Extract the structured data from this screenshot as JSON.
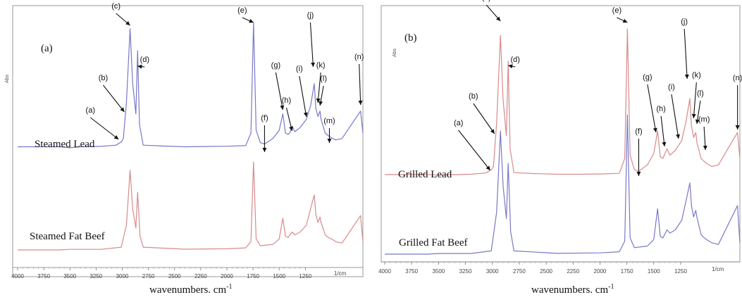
{
  "chart_data": [
    {
      "type": "line",
      "panel_label": "(a)",
      "ylabel": "Abs",
      "xlabel": "wavenumbers. cm",
      "xlabel_sup": "-1",
      "x_unit_tick": "1/cm",
      "xlim": [
        4000,
        700
      ],
      "x_ticks": [
        4000,
        3750,
        3500,
        3250,
        3000,
        2750,
        2500,
        2250,
        2000,
        1750,
        1500,
        1250
      ],
      "grid": false,
      "series": [
        {
          "name": "Steamed Lead",
          "color": "#7878c8",
          "points": [
            [
              4000,
              0.1
            ],
            [
              3600,
              0.1
            ],
            [
              3500,
              0.093
            ],
            [
              3400,
              0.1
            ],
            [
              3200,
              0.103
            ],
            [
              3060,
              0.112
            ],
            [
              3010,
              0.135
            ],
            [
              2990,
              0.16
            ],
            [
              2960,
              0.42
            ],
            [
              2925,
              0.96
            ],
            [
              2900,
              0.56
            ],
            [
              2870,
              0.34
            ],
            [
              2853,
              0.8
            ],
            [
              2835,
              0.26
            ],
            [
              2800,
              0.112
            ],
            [
              2600,
              0.105
            ],
            [
              2400,
              0.1
            ],
            [
              2200,
              0.102
            ],
            [
              2000,
              0.104
            ],
            [
              1820,
              0.108
            ],
            [
              1770,
              0.2
            ],
            [
              1745,
              1.0
            ],
            [
              1720,
              0.22
            ],
            [
              1680,
              0.13
            ],
            [
              1640,
              0.12
            ],
            [
              1560,
              0.16
            ],
            [
              1500,
              0.22
            ],
            [
              1465,
              0.34
            ],
            [
              1440,
              0.2
            ],
            [
              1415,
              0.19
            ],
            [
              1400,
              0.2
            ],
            [
              1377,
              0.25
            ],
            [
              1350,
              0.21
            ],
            [
              1300,
              0.24
            ],
            [
              1240,
              0.3
            ],
            [
              1200,
              0.4
            ],
            [
              1165,
              0.56
            ],
            [
              1150,
              0.38
            ],
            [
              1130,
              0.32
            ],
            [
              1110,
              0.36
            ],
            [
              1100,
              0.3
            ],
            [
              1060,
              0.2
            ],
            [
              1030,
              0.18
            ],
            [
              1000,
              0.165
            ],
            [
              960,
              0.15
            ],
            [
              900,
              0.16
            ],
            [
              722,
              0.36
            ],
            [
              700,
              0.2
            ]
          ]
        },
        {
          "name": "Steamed Fat Beef",
          "color": "#d88a8a",
          "points": [
            [
              4000,
              0.0
            ],
            [
              3600,
              0.0
            ],
            [
              3500,
              0.004
            ],
            [
              3200,
              0.004
            ],
            [
              3010,
              0.02
            ],
            [
              2960,
              0.18
            ],
            [
              2925,
              0.58
            ],
            [
              2900,
              0.3
            ],
            [
              2870,
              0.16
            ],
            [
              2853,
              0.42
            ],
            [
              2830,
              0.1
            ],
            [
              2800,
              0.02
            ],
            [
              2400,
              0.005
            ],
            [
              2000,
              0.008
            ],
            [
              1820,
              0.015
            ],
            [
              1770,
              0.06
            ],
            [
              1745,
              0.64
            ],
            [
              1720,
              0.08
            ],
            [
              1680,
              0.03
            ],
            [
              1560,
              0.04
            ],
            [
              1500,
              0.08
            ],
            [
              1465,
              0.23
            ],
            [
              1440,
              0.1
            ],
            [
              1415,
              0.09
            ],
            [
              1377,
              0.13
            ],
            [
              1350,
              0.11
            ],
            [
              1300,
              0.13
            ],
            [
              1240,
              0.18
            ],
            [
              1200,
              0.3
            ],
            [
              1165,
              0.4
            ],
            [
              1150,
              0.26
            ],
            [
              1130,
              0.2
            ],
            [
              1110,
              0.24
            ],
            [
              1100,
              0.2
            ],
            [
              1060,
              0.11
            ],
            [
              1030,
              0.09
            ],
            [
              1000,
              0.08
            ],
            [
              960,
              0.06
            ],
            [
              900,
              0.05
            ],
            [
              722,
              0.25
            ],
            [
              700,
              0.06
            ]
          ]
        }
      ],
      "peak_labels": [
        "(a)",
        "(b)",
        "(c)",
        "(d)",
        "(e)",
        "(f)",
        "(g)",
        "(h)",
        "(i)",
        "(j)",
        "(k)",
        "(l)",
        "(m)",
        "(n)"
      ]
    },
    {
      "type": "line",
      "panel_label": "(b)",
      "ylabel": "Abs",
      "xlabel": "wavenumbers. cm",
      "xlabel_sup": "-1",
      "x_unit_tick": "1/cm",
      "xlim": [
        4000,
        700
      ],
      "x_ticks": [
        4000,
        3750,
        3500,
        3250,
        3000,
        2750,
        2500,
        2250,
        2000,
        1750,
        1500,
        1250
      ],
      "grid": false,
      "series": [
        {
          "name": "Grilled Lead",
          "color": "#d88a8a",
          "points": [
            [
              4000,
              0.1
            ],
            [
              3600,
              0.1
            ],
            [
              3500,
              0.097
            ],
            [
              3200,
              0.102
            ],
            [
              3060,
              0.11
            ],
            [
              3010,
              0.13
            ],
            [
              2990,
              0.15
            ],
            [
              2960,
              0.42
            ],
            [
              2925,
              0.96
            ],
            [
              2900,
              0.56
            ],
            [
              2870,
              0.34
            ],
            [
              2853,
              0.8
            ],
            [
              2835,
              0.26
            ],
            [
              2800,
              0.112
            ],
            [
              2600,
              0.106
            ],
            [
              2400,
              0.102
            ],
            [
              2200,
              0.102
            ],
            [
              2000,
              0.104
            ],
            [
              1820,
              0.108
            ],
            [
              1770,
              0.2
            ],
            [
              1745,
              1.0
            ],
            [
              1720,
              0.22
            ],
            [
              1680,
              0.13
            ],
            [
              1640,
              0.12
            ],
            [
              1560,
              0.16
            ],
            [
              1500,
              0.23
            ],
            [
              1465,
              0.37
            ],
            [
              1440,
              0.21
            ],
            [
              1415,
              0.2
            ],
            [
              1377,
              0.26
            ],
            [
              1350,
              0.22
            ],
            [
              1300,
              0.25
            ],
            [
              1240,
              0.31
            ],
            [
              1200,
              0.43
            ],
            [
              1165,
              0.57
            ],
            [
              1150,
              0.4
            ],
            [
              1130,
              0.33
            ],
            [
              1110,
              0.36
            ],
            [
              1100,
              0.3
            ],
            [
              1060,
              0.2
            ],
            [
              1030,
              0.18
            ],
            [
              1000,
              0.165
            ],
            [
              960,
              0.15
            ],
            [
              900,
              0.16
            ],
            [
              722,
              0.36
            ],
            [
              700,
              0.2
            ]
          ]
        },
        {
          "name": "Grilled Fat Beef",
          "color": "#7878c8",
          "points": [
            [
              4000,
              0.0
            ],
            [
              3600,
              0.0
            ],
            [
              3500,
              0.004
            ],
            [
              3200,
              0.004
            ],
            [
              3010,
              0.02
            ],
            [
              2960,
              0.26
            ],
            [
              2925,
              0.76
            ],
            [
              2900,
              0.42
            ],
            [
              2870,
              0.22
            ],
            [
              2853,
              0.56
            ],
            [
              2830,
              0.14
            ],
            [
              2800,
              0.02
            ],
            [
              2400,
              0.005
            ],
            [
              2000,
              0.008
            ],
            [
              1820,
              0.015
            ],
            [
              1770,
              0.08
            ],
            [
              1745,
              0.86
            ],
            [
              1720,
              0.1
            ],
            [
              1680,
              0.04
            ],
            [
              1560,
              0.05
            ],
            [
              1500,
              0.09
            ],
            [
              1465,
              0.28
            ],
            [
              1440,
              0.11
            ],
            [
              1415,
              0.1
            ],
            [
              1377,
              0.15
            ],
            [
              1350,
              0.13
            ],
            [
              1300,
              0.15
            ],
            [
              1240,
              0.21
            ],
            [
              1200,
              0.33
            ],
            [
              1165,
              0.44
            ],
            [
              1150,
              0.3
            ],
            [
              1130,
              0.23
            ],
            [
              1110,
              0.27
            ],
            [
              1100,
              0.23
            ],
            [
              1060,
              0.12
            ],
            [
              1030,
              0.1
            ],
            [
              1000,
              0.085
            ],
            [
              960,
              0.07
            ],
            [
              900,
              0.06
            ],
            [
              722,
              0.3
            ],
            [
              700,
              0.07
            ]
          ]
        }
      ],
      "peak_labels": [
        "(a)",
        "(b)",
        "(c)",
        "(d)",
        "(e)",
        "(f)",
        "(g)",
        "(h)",
        "(i)",
        "(j)",
        "(k)",
        "(l)",
        "(m)",
        "(n)"
      ]
    }
  ]
}
